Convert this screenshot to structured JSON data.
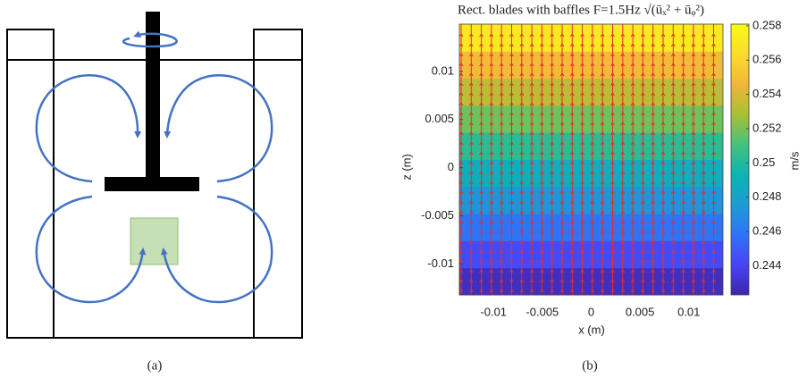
{
  "panel_a": {
    "caption": "(a)"
  },
  "chart_data": {
    "type": "heatmap",
    "title": "Rect. blades with baffles F=1.5Hz √(ūₓ² + ūᵩ²)",
    "xlabel": "x (m)",
    "ylabel": "z (m)",
    "colorbar_label": "m/s",
    "caption": "(b)",
    "xlim": [
      -0.0135,
      0.0135
    ],
    "xticks": [
      -0.01,
      -0.005,
      0,
      0.005,
      0.01
    ],
    "ylim": [
      -0.0132,
      0.0149
    ],
    "yticks": [
      -0.01,
      -0.005,
      0,
      0.005,
      0.01
    ],
    "z_edges": [
      -0.0132,
      -0.01039,
      -0.00758,
      -0.00477,
      -0.00196,
      0.00085,
      0.00366,
      0.00647,
      0.00928,
      0.01209,
      0.0149
    ],
    "values": [
      0.2428,
      0.2443,
      0.2458,
      0.2473,
      0.2488,
      0.2503,
      0.2518,
      0.2533,
      0.2548,
      0.257
    ],
    "clim": [
      0.2423,
      0.2581
    ],
    "cticks": [
      0.244,
      0.246,
      0.248,
      0.25,
      0.252,
      0.254,
      0.256,
      0.258
    ],
    "colormap": [
      "#3e26a8",
      "#4743f8",
      "#2f74f6",
      "#1d9bd4",
      "#0bb5b2",
      "#44c27c",
      "#a9bf35",
      "#f2b53a",
      "#fbdd2b",
      "#f9fb15"
    ],
    "vector_color": "#e0302a"
  }
}
